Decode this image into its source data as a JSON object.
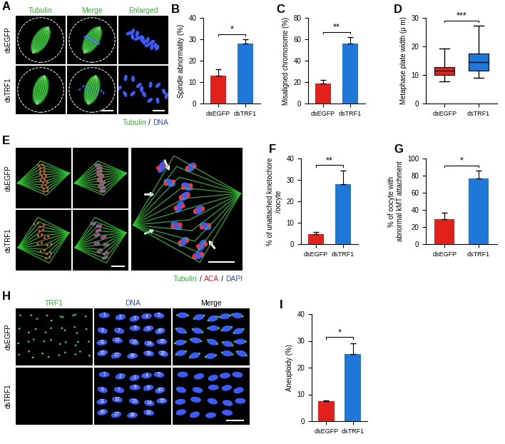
{
  "chart_data": [
    {
      "type": "bar",
      "title": "B",
      "categories": [
        "dsEGFP",
        "dsTRF1"
      ],
      "values": [
        13,
        28
      ],
      "errors": [
        3,
        2
      ],
      "colors": [
        "#e3211c",
        "#1f78d8"
      ],
      "ylabel": "Spindle abnormality (%)",
      "ylim": [
        0,
        40
      ],
      "yticks": [
        0,
        10,
        20,
        30,
        40
      ],
      "annotations": [
        "*"
      ]
    },
    {
      "type": "bar",
      "title": "C",
      "categories": [
        "dsEGFP",
        "dsTRF1"
      ],
      "values": [
        19,
        56
      ],
      "errors": [
        3,
        6
      ],
      "colors": [
        "#e3211c",
        "#1f78d8"
      ],
      "ylabel": "Misaligned chromosome (%)",
      "ylim": [
        0,
        80
      ],
      "yticks": [
        0,
        20,
        40,
        60,
        80
      ],
      "annotations": [
        "**"
      ]
    },
    {
      "type": "box",
      "title": "D",
      "categories": [
        "dsEGFP",
        "dsTRF1"
      ],
      "stats": [
        {
          "median": 11.5,
          "q1": 10,
          "q3": 12.8,
          "whislo": 7.8,
          "whishi": 19.3
        },
        {
          "median": 14.5,
          "q1": 11.5,
          "q3": 17.5,
          "whislo": 9,
          "whishi": 27.3
        }
      ],
      "colors": [
        "#e3211c",
        "#1f78d8"
      ],
      "ylabel": "Metaphase plate width (μ m)",
      "ylim": [
        0,
        30
      ],
      "yticks": [
        0,
        10,
        20,
        30
      ],
      "annotations": [
        "***"
      ]
    },
    {
      "type": "bar",
      "title": "F",
      "categories": [
        "dsEGFP",
        "dsTRF1"
      ],
      "values": [
        4.5,
        28
      ],
      "errors": [
        1,
        6.5
      ],
      "colors": [
        "#e3211c",
        "#1f78d8"
      ],
      "ylabel": "% of unattached kinetochore\n/oocyte",
      "ylim": [
        0,
        40
      ],
      "yticks": [
        0,
        10,
        20,
        30,
        40
      ],
      "annotations": [
        "**"
      ]
    },
    {
      "type": "bar",
      "title": "G",
      "categories": [
        "dsEGFP",
        "dsTRF1"
      ],
      "values": [
        29,
        77
      ],
      "errors": [
        8,
        9
      ],
      "colors": [
        "#e3211c",
        "#1f78d8"
      ],
      "ylabel": "% of oocyte with\nabnormal kMT attachment",
      "ylim": [
        0,
        100
      ],
      "yticks": [
        0,
        20,
        40,
        60,
        80,
        100
      ],
      "annotations": [
        "*"
      ]
    },
    {
      "type": "bar",
      "title": "I",
      "categories": [
        "dsEGFP",
        "dsTRF1"
      ],
      "values": [
        7.5,
        25
      ],
      "errors": [
        0.3,
        4
      ],
      "colors": [
        "#e3211c",
        "#1f78d8"
      ],
      "ylabel": "Aneuploidy (%)",
      "ylim": [
        0,
        40
      ],
      "yticks": [
        0,
        10,
        20,
        30,
        40
      ],
      "annotations": [
        "*"
      ]
    }
  ],
  "image_panels": [
    {
      "title": "A",
      "column_titles": [
        "Tubulin",
        "Merge",
        "Enlarged"
      ],
      "column_colors": [
        "#2db92d",
        "#2db92d",
        "#2db92d"
      ],
      "row_labels": [
        "dsEGFP",
        "dsTRF1"
      ],
      "channels": [
        "Tubulin",
        "/",
        "DNA"
      ],
      "channel_colors": [
        "#2db92d",
        "#000000",
        "#2b4fd8"
      ]
    },
    {
      "title": "E",
      "row_labels": [
        "dsEGFP",
        "dsTRF1"
      ],
      "channels": [
        "Tubulin",
        "/",
        "ACA",
        "/",
        "DAPI"
      ],
      "channel_colors": [
        "#2db92d",
        "#000000",
        "#e02020",
        "#000000",
        "#2b4fd8"
      ]
    },
    {
      "title": "H",
      "column_titles": [
        "TRF1",
        "DNA",
        "Merge"
      ],
      "column_colors": [
        "#2db92d",
        "#2b4fd8",
        "#000000"
      ],
      "row_labels": [
        "dsEGFP",
        "dsTRF1"
      ],
      "chromosome_numbers": [
        [
          1,
          2,
          3,
          4,
          5,
          6,
          7,
          8,
          9,
          10,
          11,
          12,
          13,
          14,
          15,
          16,
          17,
          18,
          19,
          20
        ],
        [
          1,
          2,
          3,
          4,
          5,
          6,
          7,
          8,
          9,
          10,
          11,
          12,
          13,
          14,
          15,
          16,
          17,
          18,
          19
        ]
      ]
    }
  ]
}
